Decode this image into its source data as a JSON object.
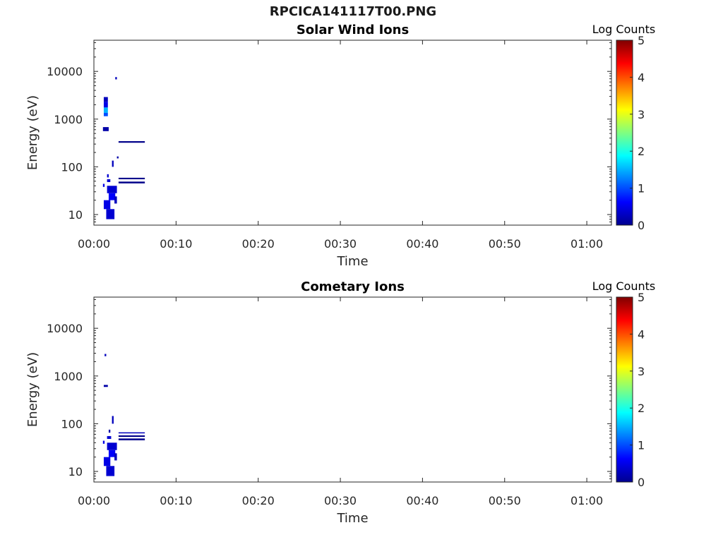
{
  "figure": {
    "title": "RPCICA141117T00.PNG"
  },
  "chart_data": [
    {
      "type": "heatmap",
      "title": "Solar Wind Ions",
      "xlabel": "Time",
      "ylabel": "Energy (eV)",
      "yscale": "log",
      "xlim": [
        "00:00",
        "01:03"
      ],
      "ylim": [
        6,
        45000
      ],
      "xticks": [
        "00:00",
        "00:10",
        "00:20",
        "00:30",
        "00:40",
        "00:50",
        "01:00"
      ],
      "yticks": [
        10,
        100,
        1000,
        10000
      ],
      "yticklabels": [
        "10",
        "100",
        "1000",
        "10000"
      ],
      "colorbar": {
        "label": "Log Counts",
        "range": [
          0,
          5
        ],
        "ticks": [
          "0",
          "1",
          "2",
          "3",
          "4",
          "5"
        ],
        "colormap": "jet"
      },
      "grid": false,
      "cells": [
        {
          "t0": 1.2,
          "t1": 1.7,
          "e0": 2300,
          "e1": 2900,
          "v": 0.3
        },
        {
          "t0": 1.2,
          "t1": 1.7,
          "e0": 1750,
          "e1": 2300,
          "v": 0.5
        },
        {
          "t0": 1.2,
          "t1": 1.7,
          "e0": 1350,
          "e1": 1750,
          "v": 1.5
        },
        {
          "t0": 1.2,
          "t1": 1.7,
          "e0": 1150,
          "e1": 1350,
          "v": 1.0
        },
        {
          "t0": 1.1,
          "t1": 1.8,
          "e0": 560,
          "e1": 680,
          "v": 0.2
        },
        {
          "t0": 2.6,
          "t1": 2.8,
          "e0": 6800,
          "e1": 7600,
          "v": 0.3
        },
        {
          "t0": 3.0,
          "t1": 6.2,
          "e0": 320,
          "e1": 345,
          "v": 0.05
        },
        {
          "t0": 3.0,
          "t1": 6.2,
          "e0": 55,
          "e1": 59,
          "v": 0.05
        },
        {
          "t0": 3.0,
          "t1": 6.2,
          "e0": 45,
          "e1": 49,
          "v": 0.05
        },
        {
          "t0": 2.2,
          "t1": 2.4,
          "e0": 100,
          "e1": 135,
          "v": 0.3
        },
        {
          "t0": 2.8,
          "t1": 3.0,
          "e0": 150,
          "e1": 165,
          "v": 0.2
        },
        {
          "t0": 1.6,
          "t1": 1.8,
          "e0": 60,
          "e1": 70,
          "v": 0.4
        },
        {
          "t0": 1.1,
          "t1": 1.3,
          "e0": 38,
          "e1": 44,
          "v": 0.5
        },
        {
          "t0": 1.6,
          "t1": 2.0,
          "e0": 48,
          "e1": 55,
          "v": 0.4
        },
        {
          "t0": 1.6,
          "t1": 2.8,
          "e0": 28,
          "e1": 40,
          "v": 0.4
        },
        {
          "t0": 1.8,
          "t1": 2.6,
          "e0": 20,
          "e1": 28,
          "v": 0.6
        },
        {
          "t0": 1.2,
          "t1": 2.0,
          "e0": 13,
          "e1": 20,
          "v": 0.5
        },
        {
          "t0": 1.5,
          "t1": 2.5,
          "e0": 8,
          "e1": 13,
          "v": 0.4
        },
        {
          "t0": 2.5,
          "t1": 2.8,
          "e0": 17,
          "e1": 24,
          "v": 0.3
        }
      ]
    },
    {
      "type": "heatmap",
      "title": "Cometary Ions",
      "xlabel": "Time",
      "ylabel": "Energy (eV)",
      "yscale": "log",
      "xlim": [
        "00:00",
        "01:03"
      ],
      "ylim": [
        6,
        45000
      ],
      "xticks": [
        "00:00",
        "00:10",
        "00:20",
        "00:30",
        "00:40",
        "00:50",
        "01:00"
      ],
      "yticks": [
        10,
        100,
        1000,
        10000
      ],
      "yticklabels": [
        "10",
        "100",
        "1000",
        "10000"
      ],
      "colorbar": {
        "label": "Log Counts",
        "range": [
          0,
          5
        ],
        "ticks": [
          "0",
          "1",
          "2",
          "3",
          "4",
          "5"
        ],
        "colormap": "jet"
      },
      "grid": false,
      "cells": [
        {
          "t0": 1.3,
          "t1": 1.5,
          "e0": 2600,
          "e1": 2900,
          "v": 0.3
        },
        {
          "t0": 1.2,
          "t1": 1.7,
          "e0": 590,
          "e1": 650,
          "v": 0.2
        },
        {
          "t0": 2.2,
          "t1": 2.4,
          "e0": 100,
          "e1": 145,
          "v": 0.3
        },
        {
          "t0": 3.0,
          "t1": 6.2,
          "e0": 63,
          "e1": 66,
          "v": 0.3
        },
        {
          "t0": 3.0,
          "t1": 6.2,
          "e0": 53,
          "e1": 57,
          "v": 0.05
        },
        {
          "t0": 3.0,
          "t1": 6.2,
          "e0": 45,
          "e1": 49,
          "v": 0.05
        },
        {
          "t0": 1.8,
          "t1": 2.0,
          "e0": 65,
          "e1": 75,
          "v": 0.2
        },
        {
          "t0": 1.1,
          "t1": 1.3,
          "e0": 38,
          "e1": 44,
          "v": 0.5
        },
        {
          "t0": 1.6,
          "t1": 2.1,
          "e0": 48,
          "e1": 55,
          "v": 0.4
        },
        {
          "t0": 1.6,
          "t1": 2.8,
          "e0": 28,
          "e1": 40,
          "v": 0.4
        },
        {
          "t0": 1.8,
          "t1": 2.6,
          "e0": 20,
          "e1": 28,
          "v": 0.6
        },
        {
          "t0": 1.2,
          "t1": 2.0,
          "e0": 13,
          "e1": 20,
          "v": 0.5
        },
        {
          "t0": 1.5,
          "t1": 2.5,
          "e0": 8,
          "e1": 13,
          "v": 0.4
        },
        {
          "t0": 2.5,
          "t1": 2.8,
          "e0": 17,
          "e1": 24,
          "v": 0.3
        }
      ]
    }
  ]
}
